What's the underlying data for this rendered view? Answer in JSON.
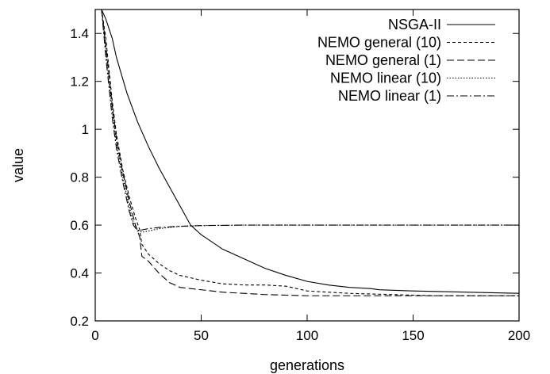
{
  "chart_data": {
    "type": "line",
    "title": "",
    "xlabel": "generations",
    "ylabel": "value",
    "xlim": [
      0,
      200
    ],
    "ylim": [
      0.2,
      1.5
    ],
    "xticks": [
      0,
      50,
      100,
      150,
      200
    ],
    "yticks": [
      0.2,
      0.4,
      0.6,
      0.8,
      1.0,
      1.2,
      1.4
    ],
    "ytick_labels": [
      "0.2",
      "0.4",
      "0.6",
      "0.8",
      "1",
      "1.2",
      "1.4"
    ],
    "grid": false,
    "legend": "top-right",
    "series": [
      {
        "name": "NSGA-II",
        "dash": "solid",
        "points": [
          [
            3,
            1.5
          ],
          [
            5,
            1.46
          ],
          [
            8,
            1.38
          ],
          [
            10,
            1.3
          ],
          [
            15,
            1.15
          ],
          [
            20,
            1.03
          ],
          [
            25,
            0.93
          ],
          [
            30,
            0.84
          ],
          [
            35,
            0.76
          ],
          [
            40,
            0.68
          ],
          [
            45,
            0.6
          ],
          [
            50,
            0.56
          ],
          [
            60,
            0.5
          ],
          [
            70,
            0.46
          ],
          [
            80,
            0.42
          ],
          [
            90,
            0.39
          ],
          [
            100,
            0.365
          ],
          [
            110,
            0.35
          ],
          [
            120,
            0.34
          ],
          [
            130,
            0.335
          ],
          [
            134,
            0.33
          ],
          [
            150,
            0.325
          ],
          [
            175,
            0.32
          ],
          [
            200,
            0.315
          ]
        ]
      },
      {
        "name": "NEMO general (10)",
        "dash": "short-dash",
        "points": [
          [
            3,
            1.5
          ],
          [
            5,
            1.38
          ],
          [
            8,
            1.12
          ],
          [
            10,
            0.98
          ],
          [
            13,
            0.83
          ],
          [
            16,
            0.72
          ],
          [
            19,
            0.63
          ],
          [
            21,
            0.58
          ],
          [
            22,
            0.52
          ],
          [
            25,
            0.48
          ],
          [
            30,
            0.44
          ],
          [
            35,
            0.41
          ],
          [
            40,
            0.39
          ],
          [
            50,
            0.37
          ],
          [
            60,
            0.355
          ],
          [
            70,
            0.35
          ],
          [
            80,
            0.35
          ],
          [
            90,
            0.345
          ],
          [
            95,
            0.335
          ],
          [
            100,
            0.325
          ],
          [
            110,
            0.32
          ],
          [
            120,
            0.315
          ],
          [
            140,
            0.31
          ],
          [
            160,
            0.305
          ],
          [
            200,
            0.305
          ]
        ]
      },
      {
        "name": "NEMO general (1)",
        "dash": "long-dash",
        "points": [
          [
            3,
            1.5
          ],
          [
            5,
            1.35
          ],
          [
            8,
            1.1
          ],
          [
            10,
            0.96
          ],
          [
            13,
            0.82
          ],
          [
            16,
            0.7
          ],
          [
            19,
            0.6
          ],
          [
            21,
            0.55
          ],
          [
            22,
            0.47
          ],
          [
            25,
            0.45
          ],
          [
            30,
            0.4
          ],
          [
            35,
            0.36
          ],
          [
            40,
            0.34
          ],
          [
            50,
            0.33
          ],
          [
            60,
            0.32
          ],
          [
            70,
            0.315
          ],
          [
            80,
            0.31
          ],
          [
            100,
            0.305
          ],
          [
            150,
            0.305
          ],
          [
            200,
            0.305
          ]
        ]
      },
      {
        "name": "NEMO linear (10)",
        "dash": "dotted",
        "points": [
          [
            3,
            1.5
          ],
          [
            5,
            1.33
          ],
          [
            8,
            1.08
          ],
          [
            10,
            0.94
          ],
          [
            13,
            0.8
          ],
          [
            16,
            0.68
          ],
          [
            18,
            0.61
          ],
          [
            20,
            0.58
          ],
          [
            22,
            0.57
          ],
          [
            25,
            0.575
          ],
          [
            30,
            0.585
          ],
          [
            40,
            0.595
          ],
          [
            50,
            0.598
          ],
          [
            70,
            0.6
          ],
          [
            100,
            0.6
          ],
          [
            150,
            0.6
          ],
          [
            200,
            0.6
          ]
        ]
      },
      {
        "name": "NEMO linear (1)",
        "dash": "dash-dot",
        "points": [
          [
            3,
            1.5
          ],
          [
            5,
            1.3
          ],
          [
            8,
            1.05
          ],
          [
            10,
            0.92
          ],
          [
            13,
            0.78
          ],
          [
            16,
            0.66
          ],
          [
            18,
            0.6
          ],
          [
            20,
            0.575
          ],
          [
            22,
            0.58
          ],
          [
            25,
            0.585
          ],
          [
            30,
            0.59
          ],
          [
            40,
            0.595
          ],
          [
            50,
            0.598
          ],
          [
            70,
            0.6
          ],
          [
            100,
            0.6
          ],
          [
            150,
            0.6
          ],
          [
            200,
            0.6
          ]
        ]
      }
    ]
  }
}
